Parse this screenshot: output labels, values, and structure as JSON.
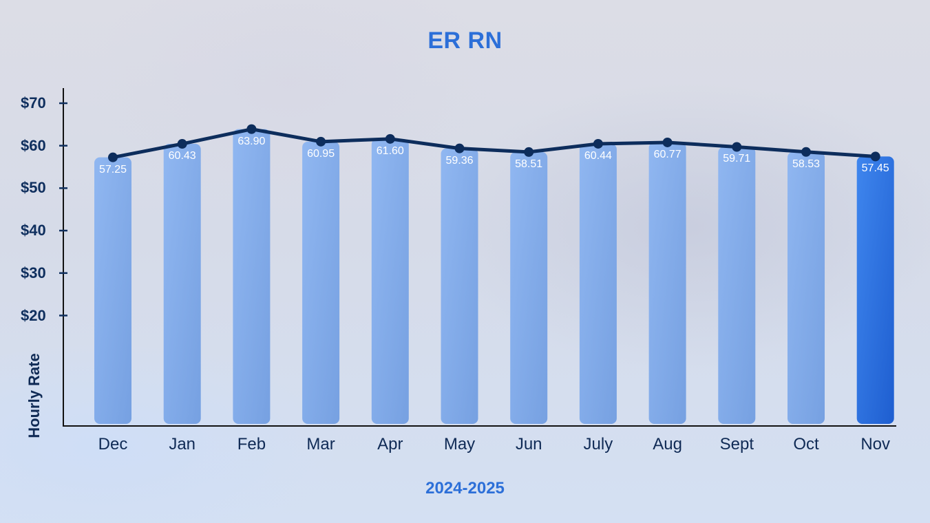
{
  "chart_data": {
    "type": "bar+line",
    "title": "ER RN",
    "xlabel": "2024-2025",
    "ylabel": "Hourly Rate",
    "categories": [
      "Dec",
      "Jan",
      "Feb",
      "Mar",
      "Apr",
      "May",
      "Jun",
      "July",
      "Aug",
      "Sept",
      "Oct",
      "Nov"
    ],
    "series": [
      {
        "name": "Hourly Rate",
        "values": [
          57.25,
          60.43,
          63.9,
          60.95,
          61.6,
          59.36,
          58.51,
          60.44,
          60.77,
          59.71,
          58.53,
          57.45
        ]
      }
    ],
    "yticks": [
      "$70",
      "$60",
      "$50",
      "$40",
      "$30",
      "$20"
    ],
    "ytick_values": [
      70,
      60,
      50,
      40,
      30,
      20
    ],
    "ylim": [
      20,
      70
    ],
    "grid": false,
    "legend": null,
    "highlight_category": "Nov",
    "colors": {
      "bar": "#7ea8ea",
      "bar_highlight": "#2f75e0",
      "line": "#0d2d5c",
      "title": "#2c6fd8",
      "axis_text": "#0f2f5e"
    }
  }
}
